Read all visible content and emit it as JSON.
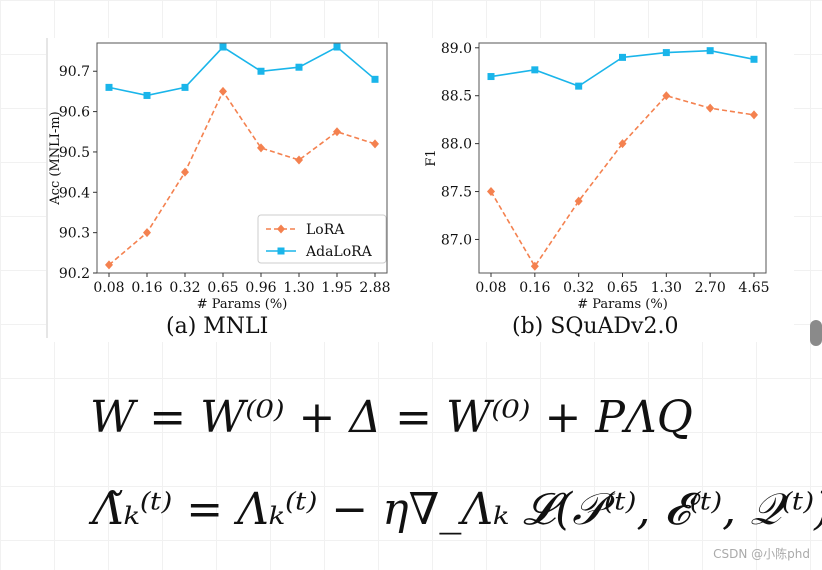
{
  "chart_data": [
    {
      "type": "line",
      "title": "",
      "caption": "(a) MNLI",
      "xlabel": "# Params (%)",
      "ylabel": "Acc (MNLI-m)",
      "categories": [
        "0.08",
        "0.16",
        "0.32",
        "0.65",
        "0.96",
        "1.30",
        "1.95",
        "2.88"
      ],
      "ylim": [
        90.2,
        90.77
      ],
      "yticks": [
        "90.2",
        "90.3",
        "90.4",
        "90.5",
        "90.6",
        "90.7"
      ],
      "legend_position": "bottom-right",
      "series": [
        {
          "name": "LoRA",
          "color": "#f4814f",
          "marker": "diamond",
          "dash": true,
          "values": [
            90.22,
            90.3,
            90.45,
            90.65,
            90.51,
            90.48,
            90.55,
            90.52
          ]
        },
        {
          "name": "AdaLoRA",
          "color": "#1ab5ea",
          "marker": "square",
          "dash": false,
          "values": [
            90.66,
            90.64,
            90.66,
            90.76,
            90.7,
            90.71,
            90.76,
            90.68
          ]
        }
      ]
    },
    {
      "type": "line",
      "title": "",
      "caption": "(b) SQuADv2.0",
      "xlabel": "# Params (%)",
      "ylabel": "F1",
      "categories": [
        "0.08",
        "0.16",
        "0.32",
        "0.65",
        "1.30",
        "2.70",
        "4.65"
      ],
      "ylim": [
        86.65,
        89.05
      ],
      "yticks": [
        "87.0",
        "87.5",
        "88.0",
        "88.5",
        "89.0"
      ],
      "legend_position": "none",
      "series": [
        {
          "name": "LoRA",
          "color": "#f4814f",
          "marker": "diamond",
          "dash": true,
          "values": [
            87.5,
            86.72,
            87.4,
            88.0,
            88.5,
            88.37,
            88.3
          ]
        },
        {
          "name": "AdaLoRA",
          "color": "#1ab5ea",
          "marker": "square",
          "dash": false,
          "values": [
            88.7,
            88.77,
            88.6,
            88.9,
            88.95,
            88.97,
            88.88
          ]
        }
      ]
    }
  ],
  "formulas": {
    "eq1": "W = W⁽⁰⁾ + Δ = W⁽⁰⁾ + PΛQ",
    "eq2": "Λ̃ₖ⁽ᵗ⁾ = Λₖ⁽ᵗ⁾ − η∇_Λₖ 𝓛(𝒫⁽ᵗ⁾, 𝓔⁽ᵗ⁾, 𝒬⁽ᵗ⁾)"
  },
  "watermark": "CSDN @小陈phd"
}
